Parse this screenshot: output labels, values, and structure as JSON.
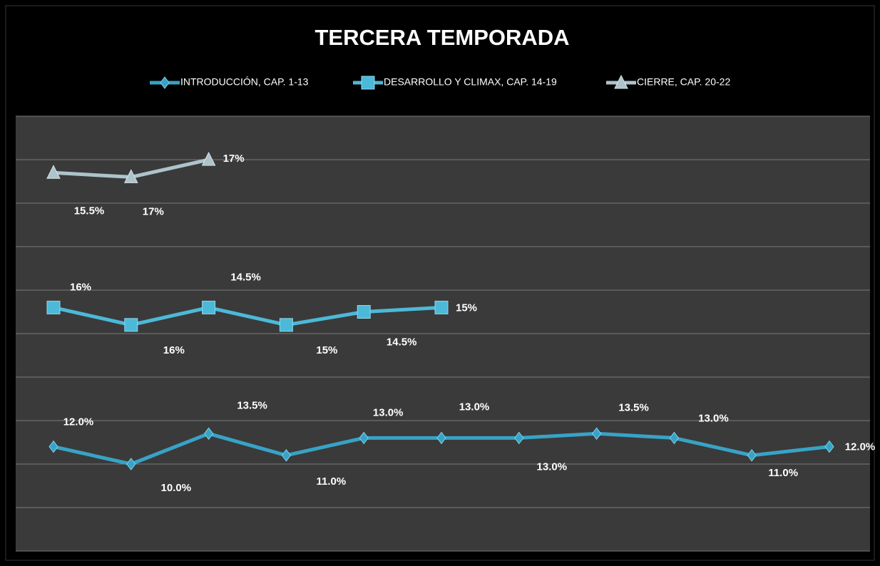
{
  "chart_data": {
    "type": "line",
    "stacked": true,
    "title": "TERCERA TEMPORADA",
    "categories": [
      null,
      null,
      null,
      null,
      null,
      null,
      null,
      null,
      null,
      null,
      null
    ],
    "ylim": [
      0,
      50
    ],
    "yticks": [
      0,
      5,
      10,
      15,
      20,
      25,
      30,
      35,
      40,
      45,
      50
    ],
    "grid": true,
    "legend": "top",
    "series": [
      {
        "name": "INTRODUCCIÓN, CAP. 1-13",
        "color": "#37a3c6",
        "marker": "diamond",
        "values": [
          12,
          10,
          13.5,
          11,
          13,
          13,
          13,
          13.5,
          13,
          11,
          12
        ],
        "value_labels": [
          "12.0%",
          "10.0%",
          "13.5%",
          "11.0%",
          "13.0%",
          "13.0%",
          "13.0%",
          "13.5%",
          "13.0%",
          "11.0%",
          "12.0%"
        ]
      },
      {
        "name": "DESARROLLO Y CLIMAX, CAP. 14-19",
        "color": "#4cb9d8",
        "marker": "square",
        "values": [
          16,
          16,
          14.5,
          15,
          14.5,
          15,
          null,
          null,
          null,
          null,
          null
        ],
        "value_labels": [
          "16%",
          "16%",
          "14.5%",
          "15%",
          "14.5%",
          "15%",
          null,
          null,
          null,
          null,
          null
        ]
      },
      {
        "name": "CIERRE, CAP. 20-22",
        "color": "#aec3cb",
        "marker": "triangle",
        "values": [
          15.5,
          17,
          17,
          null,
          null,
          null,
          null,
          null,
          null,
          null,
          null
        ],
        "value_labels": [
          "15.5%",
          "17%",
          "17%",
          null,
          null,
          null,
          null,
          null,
          null,
          null,
          null
        ]
      }
    ]
  }
}
